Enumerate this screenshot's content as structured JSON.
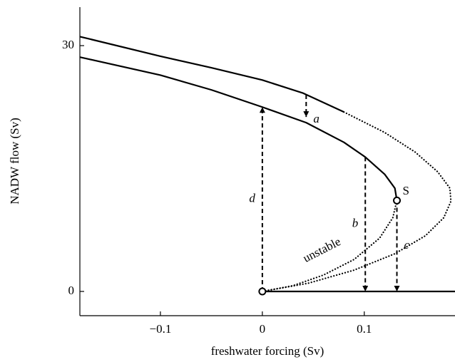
{
  "chart_data": {
    "type": "line",
    "x_label": "freshwater forcing (Sv)",
    "y_label": "NADW flow (Sv)",
    "xlim": [
      -0.179,
      0.189
    ],
    "ylim": [
      -2.96,
      34.7
    ],
    "xticks": [
      {
        "value": -0.1,
        "label": "−0.1"
      },
      0,
      0.1
    ],
    "yticks": [
      0,
      30
    ],
    "series": [
      {
        "color": "#000000",
        "style": "solid",
        "x": [
          -0.179,
          -0.1,
          -0.05,
          0,
          0.04,
          0.08
        ],
        "values": [
          31.1,
          28.7,
          27.3,
          25.8,
          24.2,
          21.9
        ]
      },
      {
        "color": "#000000",
        "style": "dotted",
        "x": [
          0.08,
          0.12,
          0.15,
          0.172,
          0.184,
          0.185,
          0.178,
          0.16,
          0.13,
          0.09,
          0.045,
          0
        ],
        "values": [
          21.9,
          19.4,
          17.0,
          14.6,
          12.6,
          11.0,
          9.0,
          6.8,
          4.6,
          2.6,
          1.0,
          0
        ]
      },
      {
        "color": "#000000",
        "style": "solid",
        "x": [
          -0.179,
          -0.1,
          -0.05,
          0,
          0.043,
          0.08,
          0.101,
          0.12,
          0.13,
          0.132
        ],
        "values": [
          28.6,
          26.4,
          24.6,
          22.5,
          20.6,
          18.2,
          16.4,
          14.3,
          12.6,
          11.1
        ]
      },
      {
        "color": "#000000",
        "style": "dotted",
        "x": [
          0.132,
          0.128,
          0.115,
          0.09,
          0.06,
          0.03,
          0
        ],
        "values": [
          11.1,
          9.0,
          6.5,
          3.9,
          2.0,
          0.7,
          0
        ]
      },
      {
        "color": "#000000",
        "style": "solid",
        "x": [
          0,
          0.189
        ],
        "values": [
          0,
          0
        ]
      }
    ],
    "points": [
      {
        "x": 0,
        "y": 0
      },
      {
        "x": 0.132,
        "y": 11.1,
        "label": "S"
      }
    ],
    "arrows": [
      {
        "label": "a",
        "x": 0.043,
        "from": 24.0,
        "to": 21.3,
        "label_side": "right"
      },
      {
        "label": "b",
        "x": 0.101,
        "from": 16.4,
        "to": 0,
        "label_side": "left"
      },
      {
        "label": "c",
        "x": 0.132,
        "from": 11.1,
        "to": 0,
        "label_side": "right"
      },
      {
        "label": "d",
        "x": 0,
        "from": 0,
        "to": 22.5,
        "label_side": "left"
      }
    ],
    "unstable_label": "unstable"
  }
}
